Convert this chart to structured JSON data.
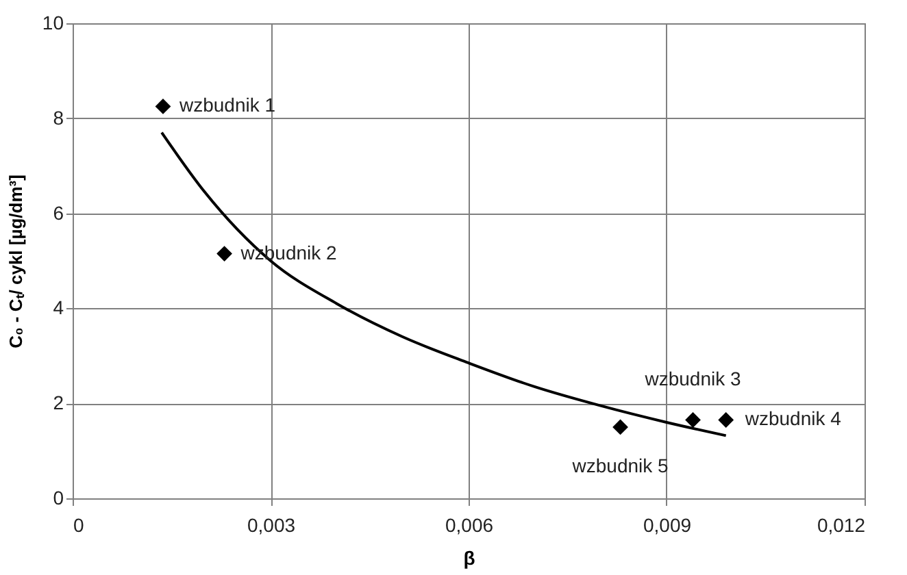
{
  "chart_data": {
    "type": "scatter",
    "xlabel": "β",
    "ylabel": "C₀ - Cₜ/ cykl  [µg/dm³]",
    "xlim": [
      0,
      0.012
    ],
    "ylim": [
      0,
      10
    ],
    "xticks": [
      {
        "value": 0,
        "label": "0"
      },
      {
        "value": 0.003,
        "label": "0,003"
      },
      {
        "value": 0.006,
        "label": "0,006"
      },
      {
        "value": 0.009,
        "label": "0,009"
      },
      {
        "value": 0.012,
        "label": "0,012"
      }
    ],
    "yticks": [
      0,
      2,
      4,
      6,
      8,
      10
    ],
    "grid": true,
    "series": [
      {
        "type": "scatter",
        "marker": "diamond",
        "color": "#000000",
        "x": [
          0.00137,
          0.0023,
          0.0094,
          0.0099,
          0.0083
        ],
        "values": [
          8.25,
          5.15,
          1.65,
          1.65,
          1.5
        ]
      },
      {
        "type": "line",
        "line_style": "solid",
        "marker": "none",
        "color": "#000000",
        "x": [
          0.00135,
          0.002,
          0.003,
          0.004,
          0.005,
          0.006,
          0.007,
          0.008,
          0.009,
          0.0099
        ],
        "values": [
          7.7,
          6.45,
          5.0,
          4.1,
          3.4,
          2.85,
          2.35,
          1.95,
          1.6,
          1.32
        ]
      }
    ],
    "annotations": [
      {
        "text": "wzbudnik 1",
        "x": 0.00137,
        "y": 8.25
      },
      {
        "text": "wzbudnik 2",
        "x": 0.0023,
        "y": 5.15
      },
      {
        "text": "wzbudnik 3",
        "x": 0.0094,
        "y": 1.65
      },
      {
        "text": "wzbudnik 4",
        "x": 0.0099,
        "y": 1.65
      },
      {
        "text": "wzbudnik 5",
        "x": 0.0083,
        "y": 1.5
      }
    ]
  }
}
